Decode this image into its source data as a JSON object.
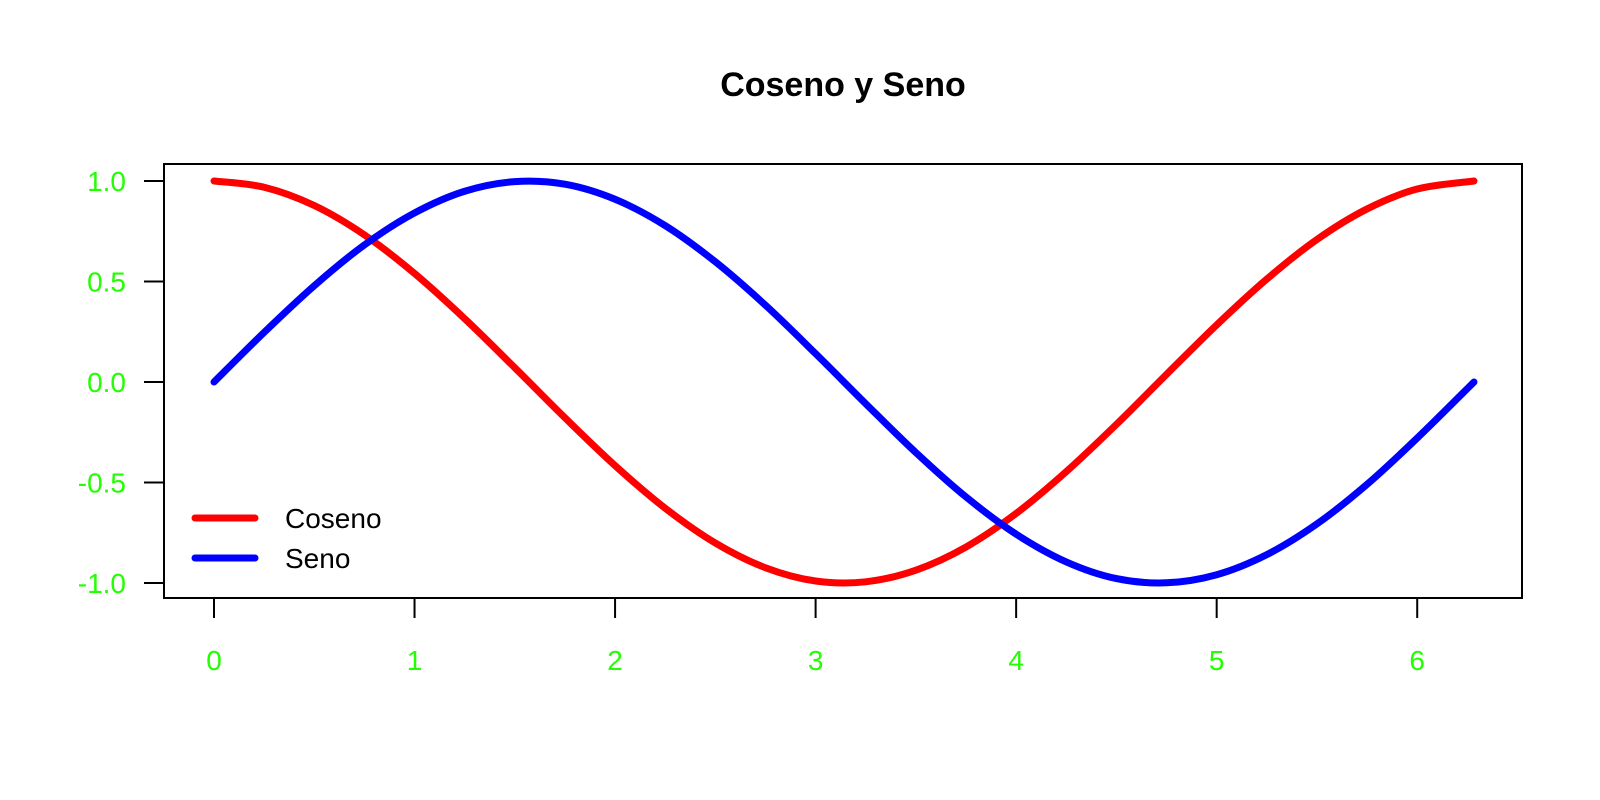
{
  "chart_data": {
    "type": "line",
    "title": "Coseno y Seno",
    "xlabel": "",
    "ylabel": "",
    "xlim": [
      0,
      6.283185
    ],
    "ylim": [
      -1.0,
      1.0
    ],
    "x_ticks": [
      0,
      1,
      2,
      3,
      4,
      5,
      6
    ],
    "x_tick_labels": [
      "0",
      "1",
      "2",
      "3",
      "4",
      "5",
      "6"
    ],
    "y_ticks": [
      1.0,
      0.5,
      0.0,
      -0.5,
      -1.0
    ],
    "y_tick_labels": [
      "1.0",
      "0.5",
      "0.0",
      "-0.5",
      "-1.0"
    ],
    "tick_label_color": "#22ff00",
    "grid": false,
    "legend_position": "bottom-left",
    "series": [
      {
        "name": "Coseno",
        "color": "#ff0000",
        "x": [
          0,
          0.25,
          0.5,
          0.75,
          1.0,
          1.25,
          1.5,
          1.75,
          2.0,
          2.25,
          2.5,
          2.75,
          3.0,
          3.25,
          3.5,
          3.75,
          4.0,
          4.25,
          4.5,
          4.75,
          5.0,
          5.25,
          5.5,
          5.75,
          6.0,
          6.283185
        ],
        "y": [
          1.0,
          0.969,
          0.878,
          0.732,
          0.54,
          0.315,
          0.071,
          -0.178,
          -0.416,
          -0.628,
          -0.801,
          -0.924,
          -0.99,
          -0.994,
          -0.936,
          -0.821,
          -0.654,
          -0.446,
          -0.211,
          0.038,
          0.284,
          0.512,
          0.709,
          0.861,
          0.96,
          1.0
        ]
      },
      {
        "name": "Seno",
        "color": "#0000ff",
        "x": [
          0,
          0.25,
          0.5,
          0.75,
          1.0,
          1.25,
          1.5,
          1.75,
          2.0,
          2.25,
          2.5,
          2.75,
          3.0,
          3.25,
          3.5,
          3.75,
          4.0,
          4.25,
          4.5,
          4.75,
          5.0,
          5.25,
          5.5,
          5.75,
          6.0,
          6.283185
        ],
        "y": [
          0.0,
          0.247,
          0.479,
          0.682,
          0.841,
          0.949,
          0.997,
          0.984,
          0.909,
          0.778,
          0.598,
          0.382,
          0.141,
          -0.108,
          -0.351,
          -0.572,
          -0.757,
          -0.895,
          -0.978,
          -0.999,
          -0.959,
          -0.859,
          -0.706,
          -0.509,
          -0.279,
          0.0
        ]
      }
    ]
  }
}
